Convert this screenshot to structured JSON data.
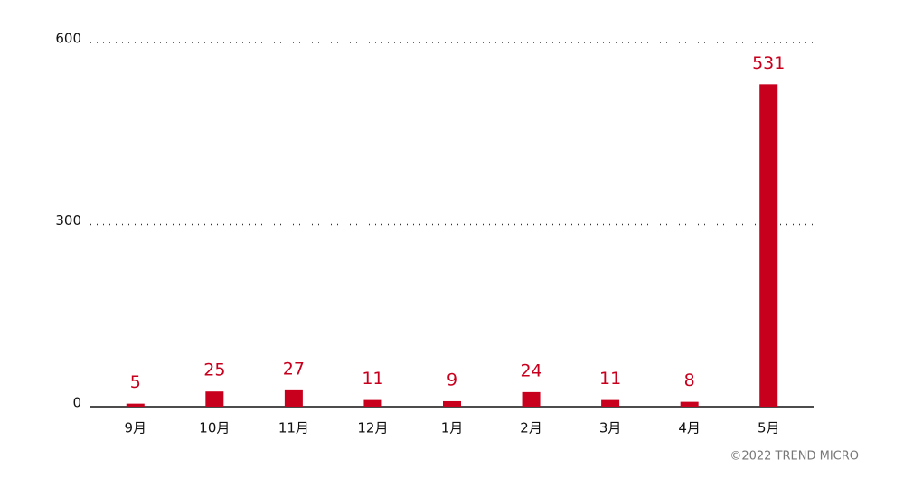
{
  "chart_data": {
    "type": "bar",
    "categories": [
      "9月",
      "10月",
      "11月",
      "12月",
      "1月",
      "2月",
      "3月",
      "4月",
      "5月"
    ],
    "values": [
      5,
      25,
      27,
      11,
      9,
      24,
      11,
      8,
      531
    ],
    "color": "#c8001e",
    "ylim": [
      0,
      600
    ],
    "yticks": [
      0,
      300,
      600
    ],
    "grid": true,
    "credit": "©2022 TREND MICRO"
  }
}
